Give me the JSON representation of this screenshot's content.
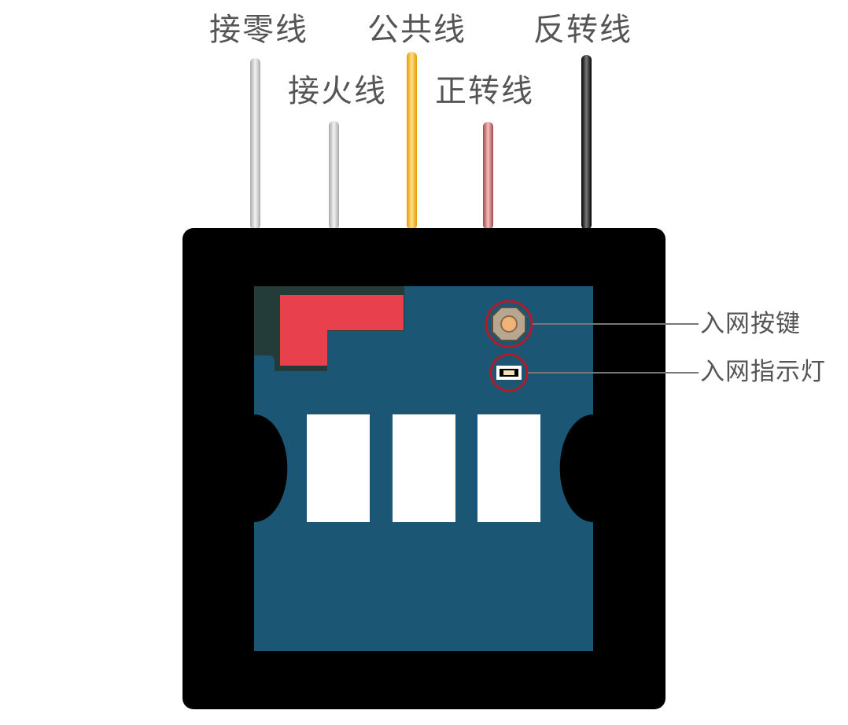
{
  "wire_labels": {
    "neutral": "接零线",
    "live": "接火线",
    "common": "公共线",
    "forward": "正转线",
    "reverse": "反转线"
  },
  "callouts": {
    "pair_button": "入网按键",
    "pair_indicator": "入网指示灯"
  },
  "colors": {
    "housing": "#000000",
    "pcb": "#1b5675",
    "pcb_dark_corner": "#233b39",
    "red_block": "#e8404d",
    "highlight_ring": "#b01d2a",
    "wire_neutral": "#cfcfcf",
    "wire_live": "#c9c9c9",
    "wire_common": "#f4b41a",
    "wire_forward": "#b55a5a",
    "wire_reverse": "#111111"
  }
}
